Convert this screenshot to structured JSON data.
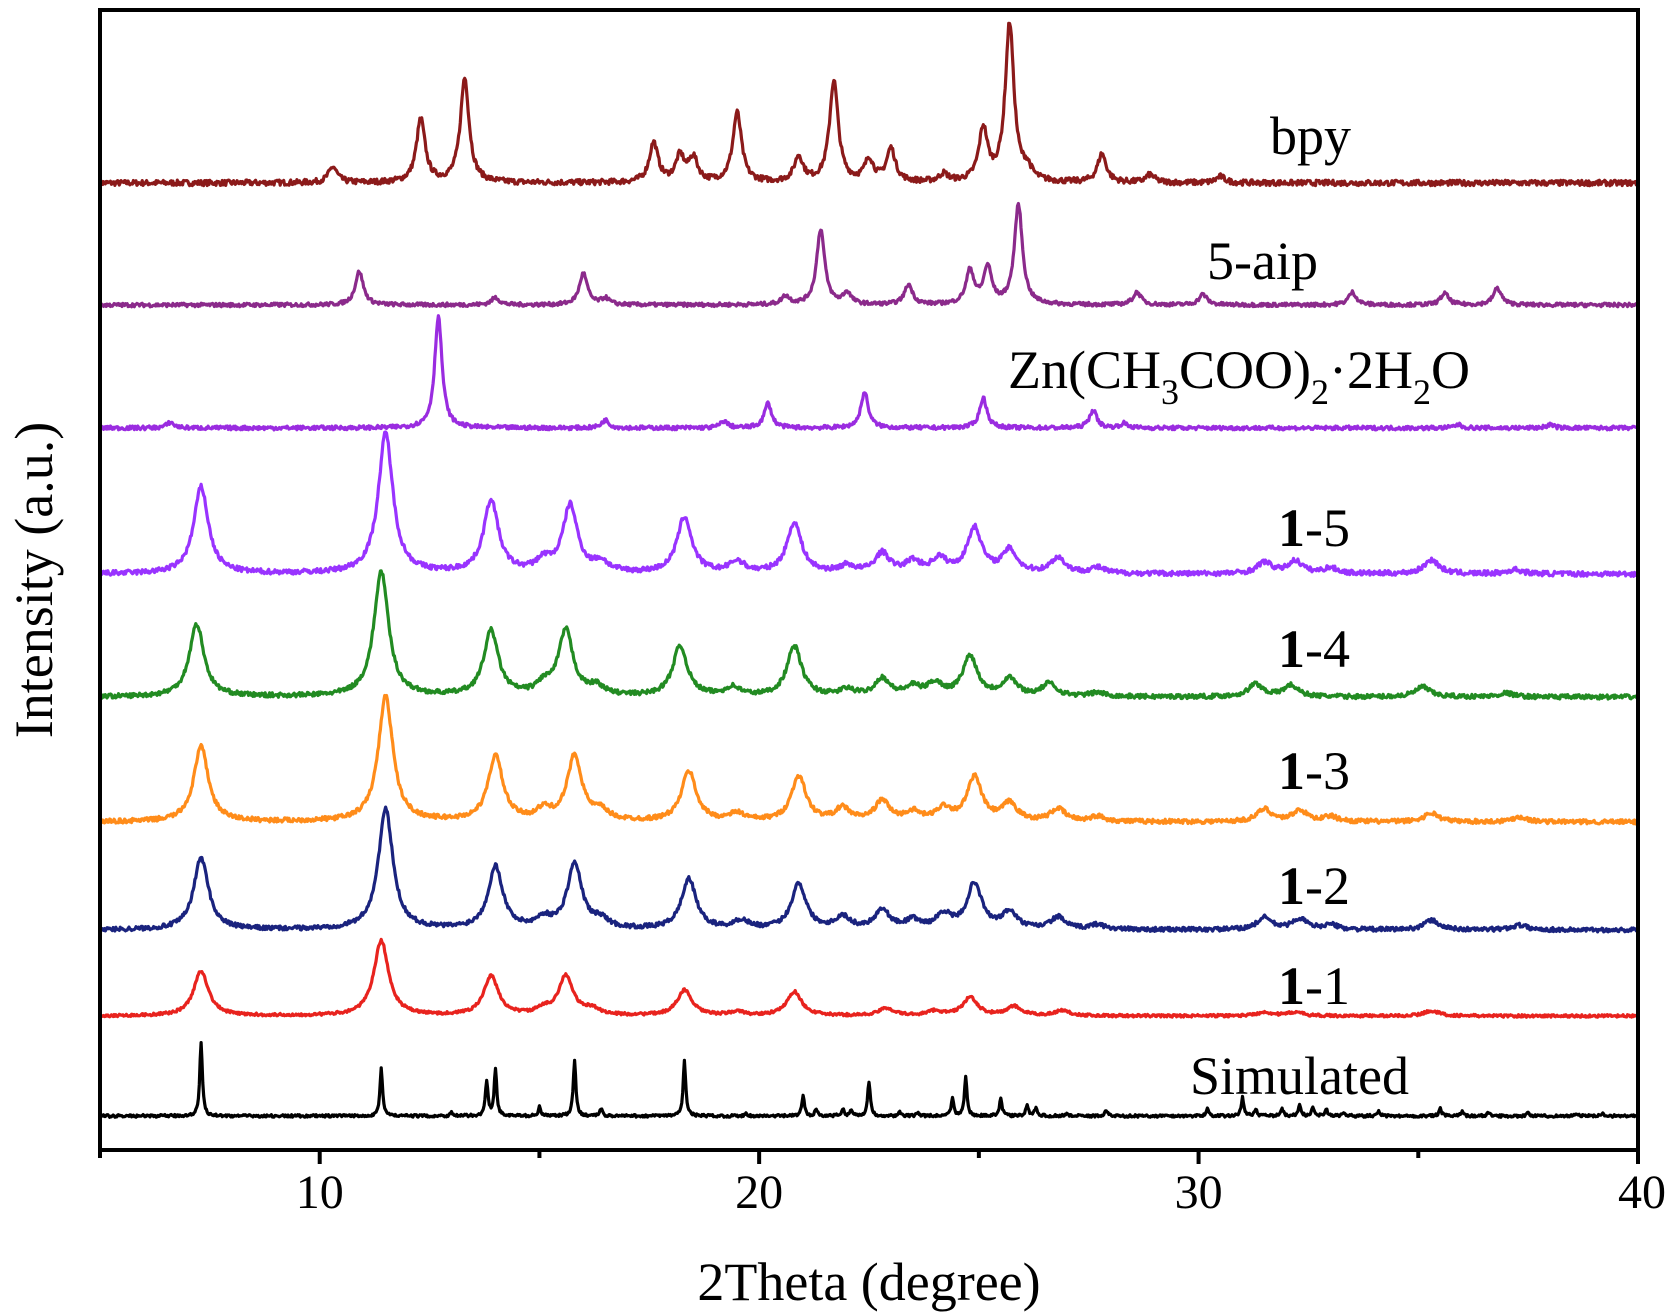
{
  "chart_data": {
    "type": "line",
    "xlabel": "2Theta (degree)",
    "ylabel": "Intensity (a.u.)",
    "xlim": [
      5,
      40
    ],
    "x_ticks": [
      10,
      20,
      30,
      40
    ],
    "y_ticks": [],
    "grid": false,
    "legend": "none (series labelled inline at right)",
    "series": [
      {
        "name": "bpy",
        "color": "#8b1a1a",
        "peaks": [
          [
            10.3,
            0.1
          ],
          [
            12.3,
            0.4
          ],
          [
            13.3,
            0.66
          ],
          [
            17.6,
            0.25
          ],
          [
            18.2,
            0.16
          ],
          [
            18.5,
            0.15
          ],
          [
            19.5,
            0.44
          ],
          [
            20.9,
            0.16
          ],
          [
            21.7,
            0.64
          ],
          [
            22.5,
            0.14
          ],
          [
            23.0,
            0.21
          ],
          [
            24.2,
            0.05
          ],
          [
            25.1,
            0.33
          ],
          [
            25.7,
            1.0
          ],
          [
            26.1,
            0.07
          ],
          [
            27.8,
            0.18
          ],
          [
            28.9,
            0.05
          ],
          [
            30.5,
            0.04
          ]
        ]
      },
      {
        "name": "5-aip",
        "color": "#8b2a8b",
        "peaks": [
          [
            10.9,
            0.32
          ],
          [
            14.0,
            0.07
          ],
          [
            16.0,
            0.3
          ],
          [
            16.5,
            0.06
          ],
          [
            20.6,
            0.08
          ],
          [
            21.4,
            0.72
          ],
          [
            22.0,
            0.11
          ],
          [
            23.4,
            0.19
          ],
          [
            24.8,
            0.32
          ],
          [
            25.2,
            0.35
          ],
          [
            25.9,
            0.95
          ],
          [
            28.6,
            0.12
          ],
          [
            30.1,
            0.1
          ],
          [
            33.5,
            0.12
          ],
          [
            35.6,
            0.11
          ],
          [
            36.8,
            0.16
          ]
        ]
      },
      {
        "name": "Zn(CH3COO)2·2H2O",
        "color": "#9a2ce0",
        "peaks": [
          [
            6.6,
            0.05
          ],
          [
            12.7,
            1.0
          ],
          [
            16.5,
            0.07
          ],
          [
            19.2,
            0.06
          ],
          [
            20.2,
            0.22
          ],
          [
            22.4,
            0.32
          ],
          [
            25.1,
            0.27
          ],
          [
            27.6,
            0.16
          ],
          [
            28.3,
            0.04
          ],
          [
            35.9,
            0.03
          ],
          [
            38.0,
            0.03
          ]
        ]
      },
      {
        "name": "1-5",
        "color": "#9933ff",
        "peaks": [
          [
            7.3,
            0.62
          ],
          [
            11.5,
            1.0
          ],
          [
            13.9,
            0.52
          ],
          [
            15.1,
            0.08
          ],
          [
            15.7,
            0.48
          ],
          [
            16.4,
            0.07
          ],
          [
            18.3,
            0.4
          ],
          [
            19.5,
            0.08
          ],
          [
            20.8,
            0.36
          ],
          [
            22.0,
            0.05
          ],
          [
            22.8,
            0.14
          ],
          [
            23.5,
            0.08
          ],
          [
            24.1,
            0.1
          ],
          [
            24.9,
            0.32
          ],
          [
            25.7,
            0.16
          ],
          [
            26.8,
            0.11
          ],
          [
            27.7,
            0.04
          ],
          [
            31.5,
            0.08
          ],
          [
            32.2,
            0.09
          ],
          [
            33.0,
            0.04
          ],
          [
            35.3,
            0.1
          ],
          [
            37.2,
            0.03
          ]
        ]
      },
      {
        "name": "1-4",
        "color": "#228b22",
        "peaks": [
          [
            7.2,
            0.58
          ],
          [
            11.4,
            1.0
          ],
          [
            13.9,
            0.52
          ],
          [
            15.1,
            0.08
          ],
          [
            15.6,
            0.52
          ],
          [
            16.3,
            0.07
          ],
          [
            18.2,
            0.4
          ],
          [
            19.4,
            0.07
          ],
          [
            20.8,
            0.4
          ],
          [
            22.0,
            0.05
          ],
          [
            22.8,
            0.14
          ],
          [
            23.5,
            0.07
          ],
          [
            24.0,
            0.1
          ],
          [
            24.8,
            0.32
          ],
          [
            25.7,
            0.14
          ],
          [
            26.6,
            0.1
          ],
          [
            27.7,
            0.03
          ],
          [
            31.3,
            0.1
          ],
          [
            32.1,
            0.09
          ],
          [
            35.1,
            0.08
          ],
          [
            37.0,
            0.03
          ]
        ]
      },
      {
        "name": "1-3",
        "color": "#ff8c1a",
        "peaks": [
          [
            7.3,
            0.6
          ],
          [
            11.5,
            1.0
          ],
          [
            14.0,
            0.52
          ],
          [
            15.1,
            0.08
          ],
          [
            15.8,
            0.52
          ],
          [
            16.4,
            0.07
          ],
          [
            18.4,
            0.4
          ],
          [
            19.5,
            0.06
          ],
          [
            20.9,
            0.36
          ],
          [
            21.9,
            0.1
          ],
          [
            22.8,
            0.16
          ],
          [
            23.5,
            0.07
          ],
          [
            24.2,
            0.1
          ],
          [
            24.9,
            0.35
          ],
          [
            25.7,
            0.14
          ],
          [
            26.8,
            0.1
          ],
          [
            27.7,
            0.04
          ],
          [
            31.5,
            0.1
          ],
          [
            32.3,
            0.09
          ],
          [
            33.0,
            0.04
          ],
          [
            35.3,
            0.07
          ],
          [
            37.3,
            0.04
          ]
        ]
      },
      {
        "name": "1-2",
        "color": "#1a237e",
        "peaks": [
          [
            7.3,
            0.6
          ],
          [
            11.5,
            1.0
          ],
          [
            14.0,
            0.52
          ],
          [
            15.1,
            0.08
          ],
          [
            15.8,
            0.54
          ],
          [
            16.4,
            0.07
          ],
          [
            18.4,
            0.42
          ],
          [
            19.6,
            0.07
          ],
          [
            20.9,
            0.38
          ],
          [
            21.9,
            0.1
          ],
          [
            22.8,
            0.16
          ],
          [
            23.5,
            0.07
          ],
          [
            24.2,
            0.12
          ],
          [
            24.9,
            0.38
          ],
          [
            25.7,
            0.14
          ],
          [
            26.8,
            0.1
          ],
          [
            27.7,
            0.04
          ],
          [
            31.5,
            0.1
          ],
          [
            32.3,
            0.09
          ],
          [
            33.0,
            0.04
          ],
          [
            35.3,
            0.08
          ],
          [
            37.3,
            0.04
          ]
        ]
      },
      {
        "name": "1-1",
        "color": "#e8231e",
        "peaks": [
          [
            7.3,
            0.6
          ],
          [
            11.4,
            1.0
          ],
          [
            13.9,
            0.52
          ],
          [
            15.1,
            0.07
          ],
          [
            15.6,
            0.52
          ],
          [
            16.2,
            0.08
          ],
          [
            18.3,
            0.34
          ],
          [
            19.5,
            0.05
          ],
          [
            20.8,
            0.32
          ],
          [
            22.9,
            0.1
          ],
          [
            24.0,
            0.06
          ],
          [
            24.8,
            0.24
          ],
          [
            25.8,
            0.12
          ],
          [
            26.9,
            0.07
          ],
          [
            31.5,
            0.05
          ],
          [
            32.2,
            0.05
          ],
          [
            35.3,
            0.07
          ]
        ]
      },
      {
        "name": "Simulated",
        "color": "#000000",
        "peaks": [
          [
            7.3,
            1.0
          ],
          [
            11.4,
            0.65
          ],
          [
            13.0,
            0.05
          ],
          [
            13.8,
            0.46
          ],
          [
            14.0,
            0.63
          ],
          [
            15.0,
            0.12
          ],
          [
            15.8,
            0.75
          ],
          [
            16.4,
            0.1
          ],
          [
            18.3,
            0.75
          ],
          [
            19.7,
            0.04
          ],
          [
            21.0,
            0.27
          ],
          [
            21.3,
            0.1
          ],
          [
            21.9,
            0.1
          ],
          [
            22.1,
            0.08
          ],
          [
            22.5,
            0.47
          ],
          [
            23.2,
            0.05
          ],
          [
            23.6,
            0.05
          ],
          [
            24.4,
            0.23
          ],
          [
            24.7,
            0.52
          ],
          [
            25.5,
            0.23
          ],
          [
            26.1,
            0.15
          ],
          [
            26.3,
            0.12
          ],
          [
            27.0,
            0.04
          ],
          [
            27.9,
            0.08
          ],
          [
            30.2,
            0.1
          ],
          [
            31.0,
            0.25
          ],
          [
            31.3,
            0.1
          ],
          [
            31.9,
            0.1
          ],
          [
            32.3,
            0.15
          ],
          [
            32.6,
            0.1
          ],
          [
            32.9,
            0.1
          ],
          [
            33.3,
            0.05
          ],
          [
            34.1,
            0.06
          ],
          [
            35.5,
            0.1
          ],
          [
            36.0,
            0.06
          ],
          [
            36.6,
            0.05
          ],
          [
            37.5,
            0.04
          ],
          [
            38.6,
            0.04
          ],
          [
            39.2,
            0.04
          ]
        ]
      }
    ]
  },
  "labels": {
    "bpy": "bpy",
    "aip": "5-aip",
    "zn": {
      "a": "Zn(CH",
      "s1": "3",
      "b": "COO)",
      "s2": "2",
      "c": "·2H",
      "s3": "2",
      "d": "O"
    },
    "s15": {
      "bold": "1",
      "rest": "-5"
    },
    "s14": {
      "bold": "1",
      "rest": "-4"
    },
    "s13": {
      "bold": "1",
      "rest": "-3"
    },
    "s12": {
      "bold": "1",
      "rest": "-2"
    },
    "s11": {
      "bold": "1",
      "rest": "-1"
    },
    "sim": "Simulated"
  }
}
